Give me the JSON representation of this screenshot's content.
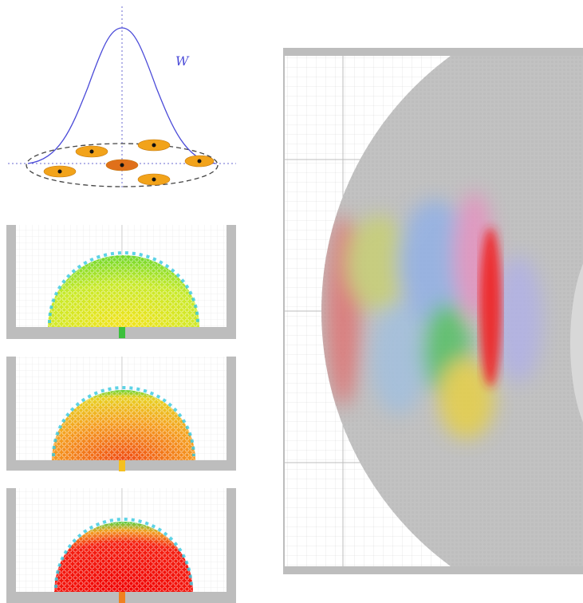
{
  "kernel": {
    "label": "W"
  }
}
